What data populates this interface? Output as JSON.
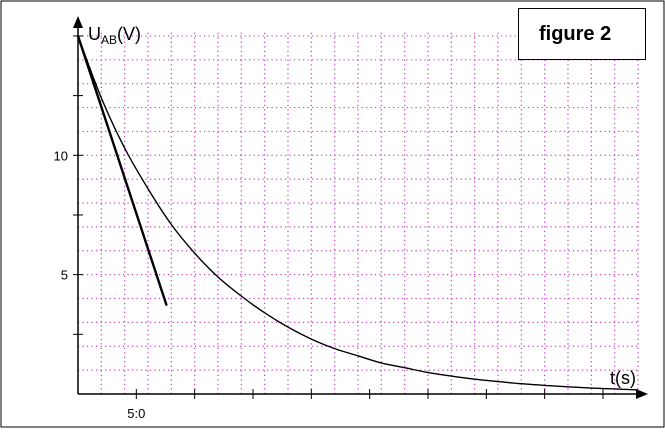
{
  "figure_label": "figure 2",
  "chart_data": {
    "type": "line",
    "title": "",
    "ylabel_main": "U",
    "ylabel_sub": "AB",
    "ylabel_unit": "(V)",
    "xlabel": "t(s)",
    "xlim": [
      0,
      240
    ],
    "ylim": [
      0,
      15.5
    ],
    "x_tick_labels": [
      {
        "x": 25,
        "label": "5:0"
      }
    ],
    "y_tick_labels": [
      {
        "y": 5,
        "label": "5"
      },
      {
        "y": 10,
        "label": "10"
      }
    ],
    "grid": true,
    "grid_color": "#c040c0",
    "series": [
      {
        "kind": "curve",
        "x": [
          0,
          10,
          20,
          30,
          40,
          50,
          60,
          70,
          80,
          90,
          100,
          110,
          120,
          130,
          140,
          150,
          160,
          170,
          180,
          190,
          200,
          210,
          220,
          230,
          240
        ],
        "values": [
          15.0,
          12.4,
          10.3,
          8.6,
          7.1,
          5.9,
          4.9,
          4.1,
          3.4,
          2.8,
          2.3,
          1.9,
          1.6,
          1.3,
          1.1,
          0.9,
          0.75,
          0.62,
          0.52,
          0.43,
          0.36,
          0.3,
          0.25,
          0.21,
          0.17
        ]
      },
      {
        "kind": "tangent",
        "x": [
          0,
          38
        ],
        "values": [
          15.0,
          3.7
        ]
      }
    ]
  }
}
